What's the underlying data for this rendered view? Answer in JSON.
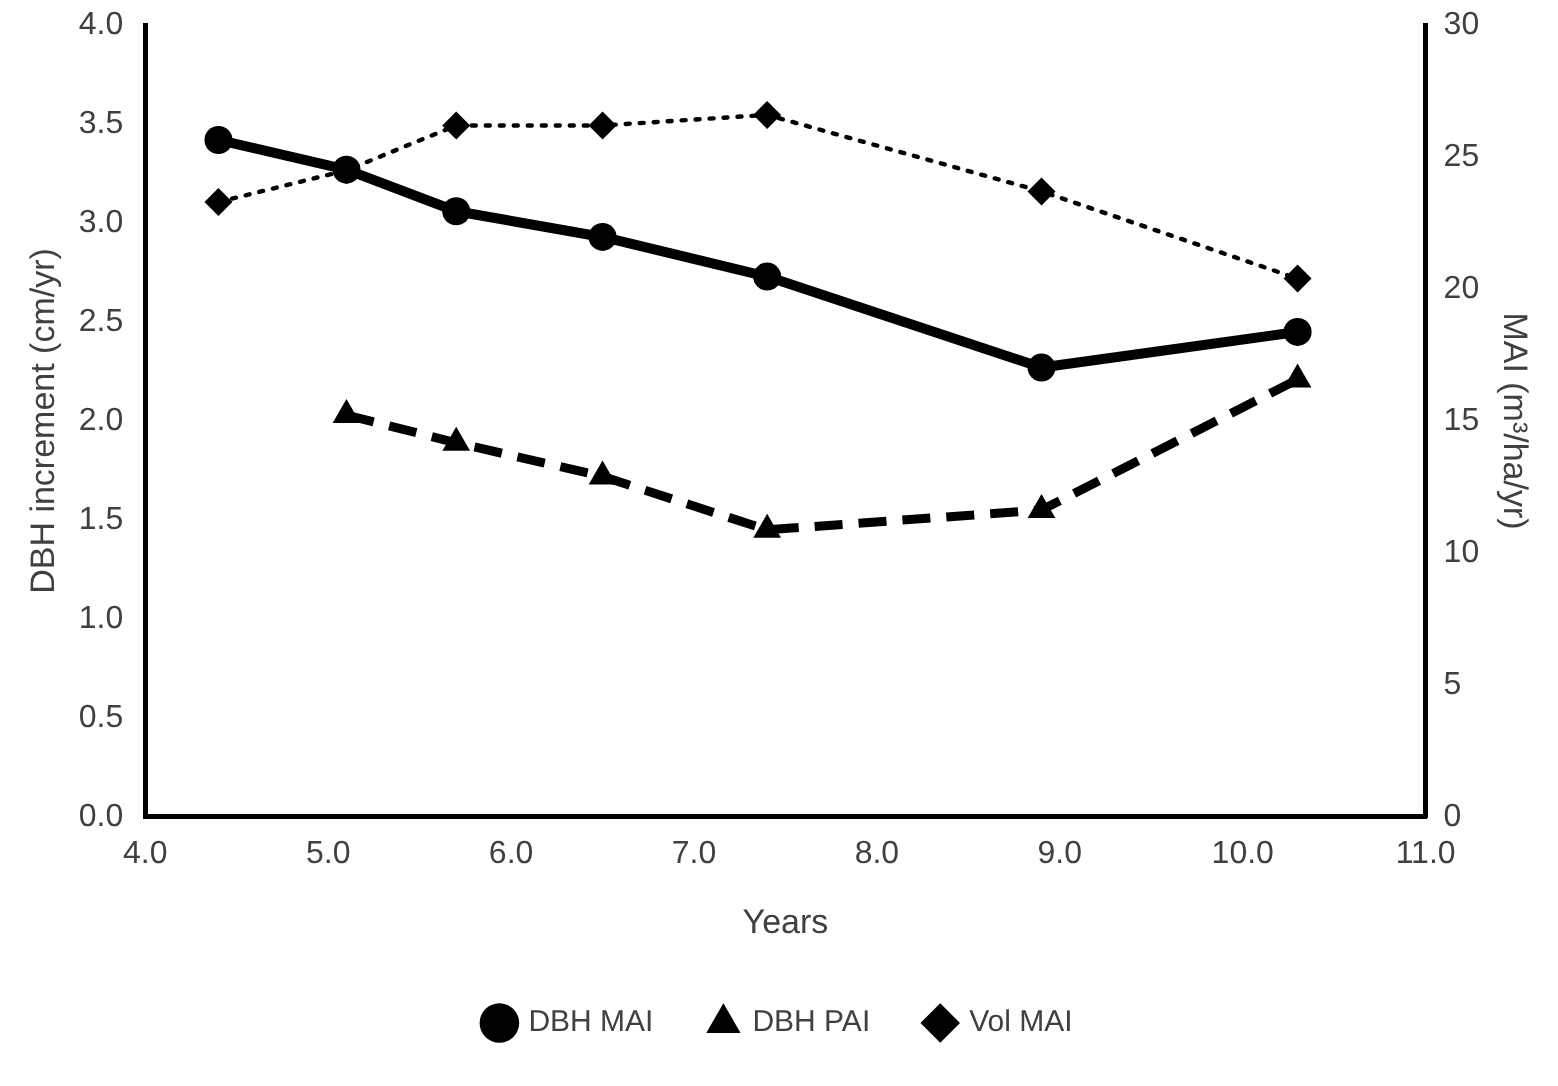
{
  "chart_data": {
    "type": "line",
    "xlabel": "Years",
    "ylabel": "DBH increment (cm/yr)",
    "y2label": "MAI (m³/ha/yr)",
    "xlim": [
      4.0,
      11.0
    ],
    "xticks": [
      {
        "value": 4,
        "label": "4.0"
      },
      {
        "value": 5,
        "label": "5.0"
      },
      {
        "value": 6,
        "label": "6.0"
      },
      {
        "value": 7,
        "label": "7.0"
      },
      {
        "value": 8,
        "label": "8.0"
      },
      {
        "value": 9,
        "label": "9.0"
      },
      {
        "value": 10,
        "label": "10.0"
      },
      {
        "value": 11,
        "label": "11.0"
      }
    ],
    "ylim": [
      0,
      4.0
    ],
    "yticks": [
      {
        "value": 0,
        "label": "0.0"
      },
      {
        "value": 0.5,
        "label": "0.5"
      },
      {
        "value": 1,
        "label": "1.0"
      },
      {
        "value": 1.5,
        "label": "1.5"
      },
      {
        "value": 2,
        "label": "2.0"
      },
      {
        "value": 2.5,
        "label": "2.5"
      },
      {
        "value": 3,
        "label": "3.0"
      },
      {
        "value": 3.5,
        "label": "3.5"
      },
      {
        "value": 4,
        "label": "4.0"
      }
    ],
    "y2lim": [
      0,
      30
    ],
    "y2ticks": [
      0,
      5,
      10,
      15,
      20,
      25,
      30
    ],
    "grid": false,
    "legend": "bottom",
    "series": [
      {
        "name": "DBH MAI",
        "color": "#000000",
        "marker": "circle",
        "line_style": "solid",
        "x": [
          4.4,
          5.1,
          5.7,
          6.5,
          7.4,
          8.9,
          10.3
        ],
        "values": [
          3.42,
          3.27,
          3.06,
          2.93,
          2.73,
          2.27,
          2.45
        ]
      },
      {
        "name": "DBH PAI",
        "color": "#000000",
        "marker": "triangle",
        "line_style": "dashed",
        "x": [
          5.1,
          5.7,
          6.5,
          7.4,
          8.9,
          10.3
        ],
        "values": [
          2.03,
          1.89,
          1.72,
          1.45,
          1.55,
          2.21
        ]
      },
      {
        "name": "Vol MAI",
        "color": "#000000",
        "marker": "diamond",
        "line_style": "dotted",
        "axis": "y2",
        "x": [
          4.4,
          5.1,
          5.7,
          6.5,
          7.4,
          8.9,
          10.3
        ],
        "values": [
          23.3,
          24.5,
          26.2,
          26.2,
          26.6,
          23.7,
          20.4
        ]
      }
    ]
  }
}
